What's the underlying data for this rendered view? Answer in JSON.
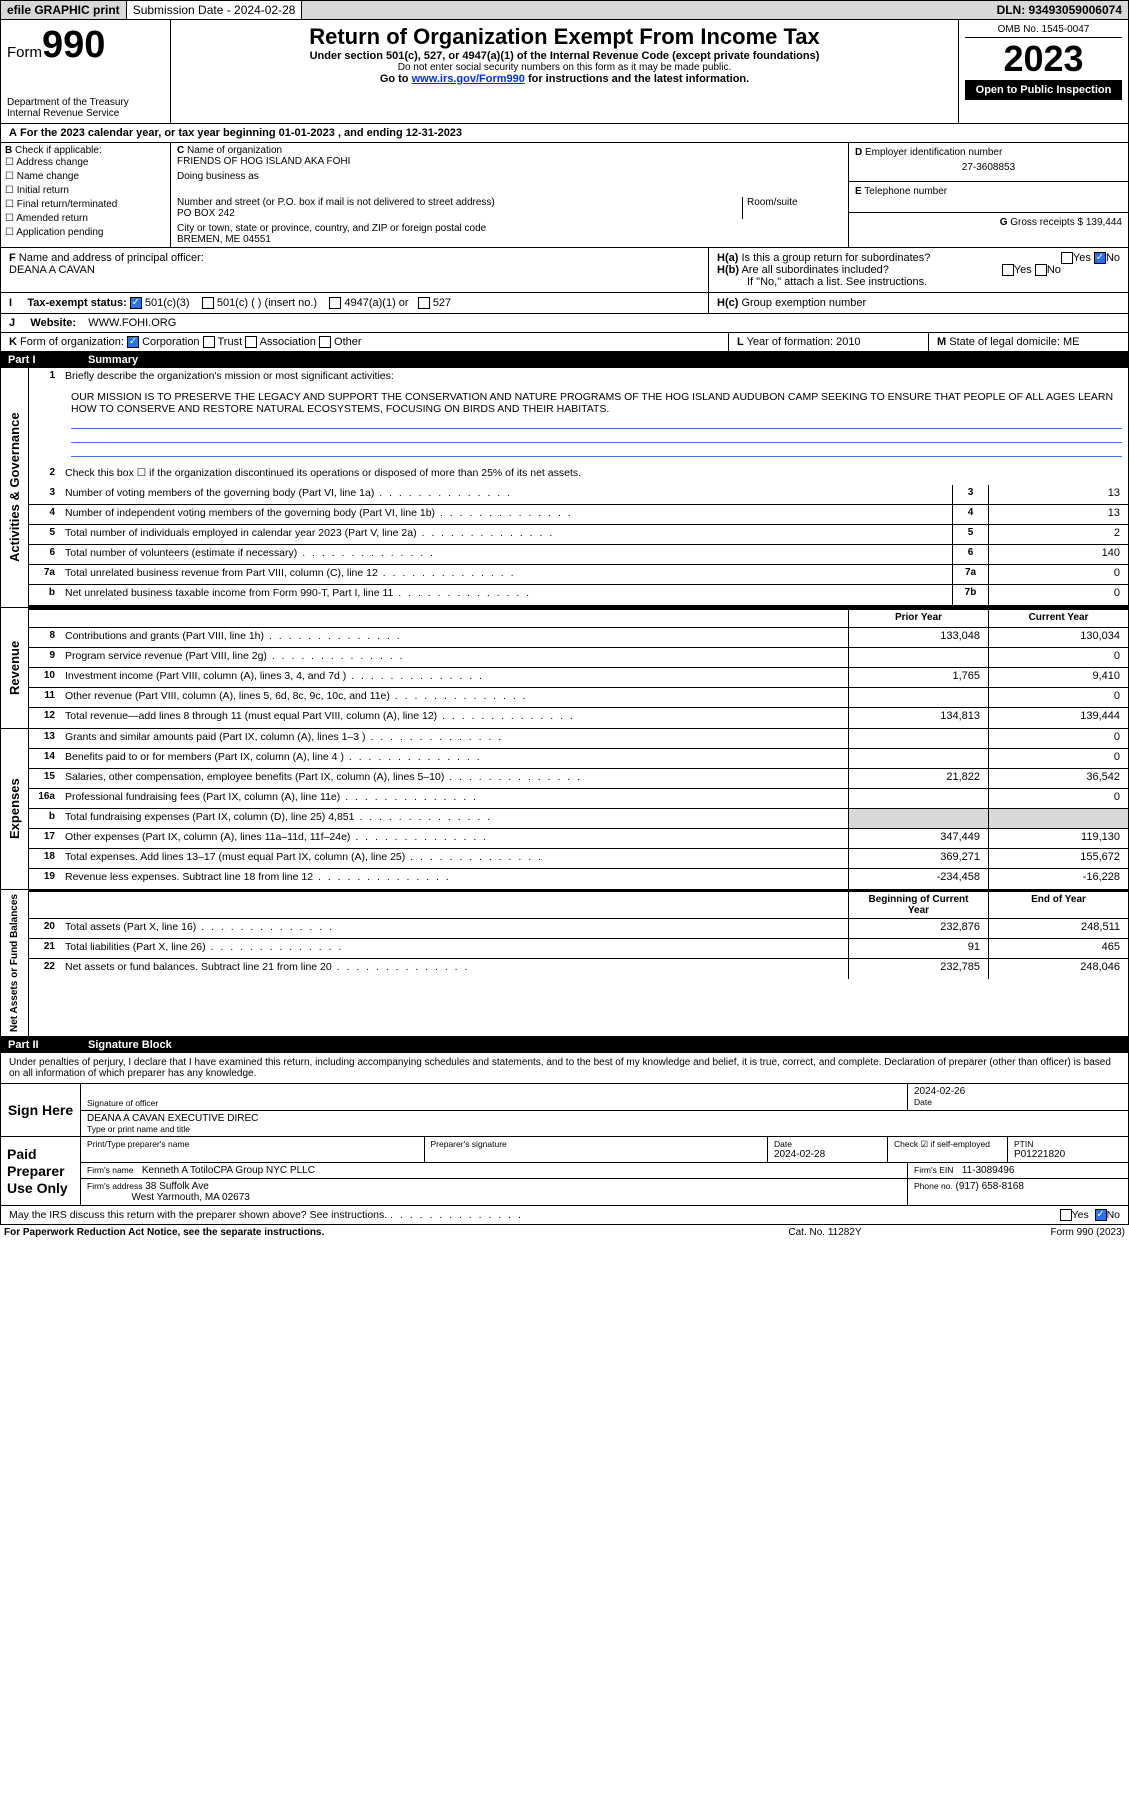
{
  "top": {
    "efile": "efile GRAPHIC print",
    "submission": "Submission Date - 2024-02-28",
    "dln": "DLN: 93493059006074"
  },
  "header": {
    "formword": "Form",
    "formno": "990",
    "title": "Return of Organization Exempt From Income Tax",
    "sub1": "Under section 501(c), 527, or 4947(a)(1) of the Internal Revenue Code (except private foundations)",
    "sub2": "Do not enter social security numbers on this form as it may be made public.",
    "sub3_pre": "Go to ",
    "sub3_link": "www.irs.gov/Form990",
    "sub3_post": " for instructions and the latest information.",
    "dept": "Department of the Treasury",
    "irs": "Internal Revenue Service",
    "omb": "OMB No. 1545-0047",
    "year": "2023",
    "inspection": "Open to Public Inspection"
  },
  "A": {
    "line": "For the 2023 calendar year, or tax year beginning 01-01-2023    , and ending 12-31-2023"
  },
  "B": {
    "title": "Check if applicable:",
    "items": [
      "Address change",
      "Name change",
      "Initial return",
      "Final return/terminated",
      "Amended return",
      "Application pending"
    ]
  },
  "C": {
    "label": "Name of organization",
    "name": "FRIENDS OF HOG ISLAND AKA FOHI",
    "dba": "Doing business as",
    "addr_label": "Number and street (or P.O. box if mail is not delivered to street address)",
    "room_label": "Room/suite",
    "addr": "PO BOX 242",
    "city_label": "City or town, state or province, country, and ZIP or foreign postal code",
    "city": "BREMEN, ME  04551"
  },
  "D": {
    "label": "Employer identification number",
    "val": "27-3608853"
  },
  "E": {
    "label": "Telephone number",
    "val": ""
  },
  "G": {
    "label": "Gross receipts $",
    "val": "139,444"
  },
  "F": {
    "label": "Name and address of principal officer:",
    "name": "DEANA A CAVAN"
  },
  "H": {
    "a": "Is this a group return for subordinates?",
    "b": "Are all subordinates included?",
    "b_note": "If \"No,\" attach a list. See instructions.",
    "c": "Group exemption number"
  },
  "I": {
    "label": "Tax-exempt status:",
    "opt1": "501(c)(3)",
    "opt2": "501(c) (  ) (insert no.)",
    "opt3": "4947(a)(1) or",
    "opt4": "527"
  },
  "J": {
    "label": "Website:",
    "val": "WWW.FOHI.ORG"
  },
  "K": {
    "label": "Form of organization:",
    "opts": [
      "Corporation",
      "Trust",
      "Association",
      "Other"
    ]
  },
  "L": {
    "label": "Year of formation:",
    "val": "2010"
  },
  "M": {
    "label": "State of legal domicile:",
    "val": "ME"
  },
  "part1": {
    "num": "Part I",
    "title": "Summary"
  },
  "mission_label": "Briefly describe the organization's mission or most significant activities:",
  "mission": "OUR MISSION IS TO PRESERVE THE LEGACY AND SUPPORT THE CONSERVATION AND NATURE PROGRAMS OF THE HOG ISLAND AUDUBON CAMP SEEKING TO ENSURE THAT PEOPLE OF ALL AGES LEARN HOW TO CONSERVE AND RESTORE NATURAL ECOSYSTEMS, FOCUSING ON BIRDS AND THEIR HABITATS.",
  "line2": "Check this box  ☐  if the organization discontinued its operations or disposed of more than 25% of its net assets.",
  "rows_act": [
    {
      "n": "3",
      "d": "Number of voting members of the governing body (Part VI, line 1a)",
      "b": "3",
      "v": "13"
    },
    {
      "n": "4",
      "d": "Number of independent voting members of the governing body (Part VI, line 1b)",
      "b": "4",
      "v": "13"
    },
    {
      "n": "5",
      "d": "Total number of individuals employed in calendar year 2023 (Part V, line 2a)",
      "b": "5",
      "v": "2"
    },
    {
      "n": "6",
      "d": "Total number of volunteers (estimate if necessary)",
      "b": "6",
      "v": "140"
    },
    {
      "n": "7a",
      "d": "Total unrelated business revenue from Part VIII, column (C), line 12",
      "b": "7a",
      "v": "0"
    },
    {
      "n": "b",
      "d": "Net unrelated business taxable income from Form 990-T, Part I, line 11",
      "b": "7b",
      "v": "0"
    }
  ],
  "rev_header": {
    "prior": "Prior Year",
    "current": "Current Year"
  },
  "rows_rev": [
    {
      "n": "8",
      "d": "Contributions and grants (Part VIII, line 1h)",
      "p": "133,048",
      "c": "130,034"
    },
    {
      "n": "9",
      "d": "Program service revenue (Part VIII, line 2g)",
      "p": "",
      "c": "0"
    },
    {
      "n": "10",
      "d": "Investment income (Part VIII, column (A), lines 3, 4, and 7d )",
      "p": "1,765",
      "c": "9,410"
    },
    {
      "n": "11",
      "d": "Other revenue (Part VIII, column (A), lines 5, 6d, 8c, 9c, 10c, and 11e)",
      "p": "",
      "c": "0"
    },
    {
      "n": "12",
      "d": "Total revenue—add lines 8 through 11 (must equal Part VIII, column (A), line 12)",
      "p": "134,813",
      "c": "139,444"
    }
  ],
  "rows_exp": [
    {
      "n": "13",
      "d": "Grants and similar amounts paid (Part IX, column (A), lines 1–3 )",
      "p": "",
      "c": "0"
    },
    {
      "n": "14",
      "d": "Benefits paid to or for members (Part IX, column (A), line 4 )",
      "p": "",
      "c": "0"
    },
    {
      "n": "15",
      "d": "Salaries, other compensation, employee benefits (Part IX, column (A), lines 5–10)",
      "p": "21,822",
      "c": "36,542"
    },
    {
      "n": "16a",
      "d": "Professional fundraising fees (Part IX, column (A), line 11e)",
      "p": "",
      "c": "0"
    },
    {
      "n": "b",
      "d": "Total fundraising expenses (Part IX, column (D), line 25) 4,851",
      "p": "shade",
      "c": "shade"
    },
    {
      "n": "17",
      "d": "Other expenses (Part IX, column (A), lines 11a–11d, 11f–24e)",
      "p": "347,449",
      "c": "119,130"
    },
    {
      "n": "18",
      "d": "Total expenses. Add lines 13–17 (must equal Part IX, column (A), line 25)",
      "p": "369,271",
      "c": "155,672"
    },
    {
      "n": "19",
      "d": "Revenue less expenses. Subtract line 18 from line 12",
      "p": "-234,458",
      "c": "-16,228"
    }
  ],
  "na_header": {
    "begin": "Beginning of Current Year",
    "end": "End of Year"
  },
  "rows_na": [
    {
      "n": "20",
      "d": "Total assets (Part X, line 16)",
      "p": "232,876",
      "c": "248,511"
    },
    {
      "n": "21",
      "d": "Total liabilities (Part X, line 26)",
      "p": "91",
      "c": "465"
    },
    {
      "n": "22",
      "d": "Net assets or fund balances. Subtract line 21 from line 20",
      "p": "232,785",
      "c": "248,046"
    }
  ],
  "part2": {
    "num": "Part II",
    "title": "Signature Block"
  },
  "perjury": "Under penalties of perjury, I declare that I have examined this return, including accompanying schedules and statements, and to the best of my knowledge and belief, it is true, correct, and complete. Declaration of preparer (other than officer) is based on all information of which preparer has any knowledge.",
  "sign": {
    "left": "Sign Here",
    "sig_label": "Signature of officer",
    "name": "DEANA A CAVAN  EXECUTIVE DIREC",
    "type_label": "Type or print name and title",
    "date_label": "Date",
    "date": "2024-02-26"
  },
  "prep": {
    "left": "Paid Preparer Use Only",
    "h1": "Print/Type preparer's name",
    "h2": "Preparer's signature",
    "h3": "Date",
    "h3v": "2024-02-28",
    "h4": "Check ☑ if self-employed",
    "h5": "PTIN",
    "h5v": "P01221820",
    "firm_label": "Firm's name",
    "firm": "Kenneth A TotiloCPA Group NYC PLLC",
    "ein_label": "Firm's EIN",
    "ein": "11-3089496",
    "addr_label": "Firm's address",
    "addr1": "38 Suffolk Ave",
    "addr2": "West Yarmouth, MA  02673",
    "phone_label": "Phone no.",
    "phone": "(917) 658-8168"
  },
  "discuss": "May the IRS discuss this return with the preparer shown above? See instructions.",
  "footer": {
    "l": "For Paperwork Reduction Act Notice, see the separate instructions.",
    "m": "Cat. No. 11282Y",
    "r": "Form 990 (2023)"
  },
  "sides": {
    "act": "Activities & Governance",
    "rev": "Revenue",
    "exp": "Expenses",
    "na": "Net Assets or Fund Balances"
  }
}
